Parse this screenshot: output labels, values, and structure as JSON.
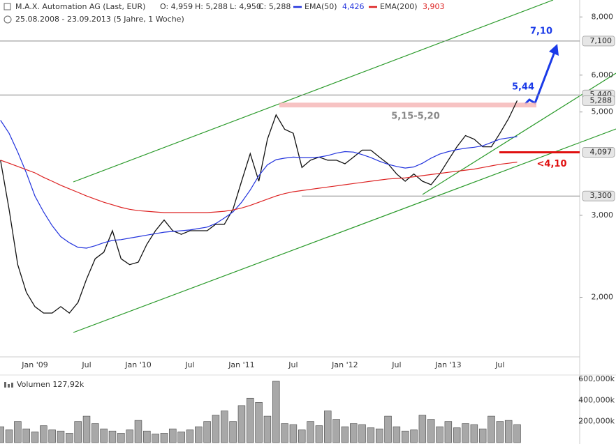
{
  "chart_data": {
    "type": "line",
    "subtitle": "25.08.2008 - 23.09.2013 (5 Jahre, 1 Woche)",
    "ohlc": [
      "O: 4,959",
      "H: 5,288",
      "L: 4,950",
      "C: 5,288"
    ],
    "log_scale": true,
    "grid": false,
    "categories": [
      null,
      null,
      null,
      null,
      "Jan '09",
      null,
      null,
      null,
      null,
      null,
      "Jul",
      null,
      null,
      null,
      null,
      null,
      "Jan '10",
      null,
      null,
      null,
      null,
      null,
      "Jul",
      null,
      null,
      null,
      null,
      null,
      "Jan '11",
      null,
      null,
      null,
      null,
      null,
      "Jul",
      null,
      null,
      null,
      null,
      null,
      "Jan '12",
      null,
      null,
      null,
      null,
      null,
      "Jul",
      null,
      null,
      null,
      null,
      null,
      "Jan '13",
      null,
      null,
      null,
      null,
      null,
      "Jul",
      null,
      null
    ],
    "series": [
      {
        "name": "M.A.X. Automation AG (Last, EUR)",
        "color": "#111111",
        "values": [
          3940,
          3090,
          2350,
          2050,
          1910,
          1850,
          1850,
          1910,
          1850,
          1950,
          2190,
          2420,
          2500,
          2780,
          2420,
          2350,
          2380,
          2600,
          2780,
          2930,
          2780,
          2730,
          2780,
          2780,
          2780,
          2870,
          2870,
          3090,
          3550,
          4070,
          3550,
          4370,
          4930,
          4590,
          4500,
          3800,
          3940,
          4000,
          3940,
          3940,
          3870,
          4000,
          4140,
          4140,
          4000,
          3870,
          3680,
          3550,
          3680,
          3550,
          3490,
          3680,
          3940,
          4210,
          4450,
          4370,
          4210,
          4210,
          4500,
          4840,
          5288
        ]
      },
      {
        "name": "EMA(50)",
        "value_label": "4,426",
        "color": "#2233dd",
        "values": [
          4800,
          4500,
          4100,
          3700,
          3300,
          3050,
          2850,
          2700,
          2620,
          2560,
          2550,
          2580,
          2620,
          2650,
          2660,
          2680,
          2700,
          2720,
          2740,
          2760,
          2770,
          2780,
          2790,
          2810,
          2830,
          2880,
          2960,
          3050,
          3200,
          3400,
          3650,
          3850,
          3950,
          3980,
          4000,
          3990,
          3990,
          4000,
          4030,
          4080,
          4110,
          4100,
          4050,
          3990,
          3920,
          3860,
          3820,
          3790,
          3810,
          3880,
          3980,
          4060,
          4110,
          4150,
          4180,
          4200,
          4230,
          4300,
          4370,
          4400,
          4426
        ]
      },
      {
        "name": "EMA(200)",
        "value_label": "3,903",
        "color": "#dd2222",
        "values": [
          3940,
          3880,
          3820,
          3760,
          3700,
          3620,
          3550,
          3480,
          3420,
          3360,
          3300,
          3250,
          3200,
          3160,
          3120,
          3090,
          3070,
          3060,
          3050,
          3040,
          3040,
          3040,
          3040,
          3040,
          3040,
          3050,
          3060,
          3080,
          3110,
          3150,
          3200,
          3250,
          3300,
          3340,
          3370,
          3390,
          3410,
          3430,
          3450,
          3470,
          3490,
          3510,
          3530,
          3550,
          3570,
          3590,
          3600,
          3610,
          3630,
          3650,
          3670,
          3690,
          3710,
          3730,
          3750,
          3770,
          3800,
          3830,
          3860,
          3880,
          3903
        ]
      }
    ],
    "ylim": [
      1500,
      8550
    ],
    "yticks": [
      {
        "value": 2000,
        "label": "2,000"
      },
      {
        "value": 3000,
        "label": "3,000"
      },
      {
        "value": 5000,
        "label": "5,000"
      },
      {
        "value": 6000,
        "label": "6,000"
      },
      {
        "value": 8000,
        "label": "8,000"
      }
    ],
    "price_labels": [
      {
        "value": 7100,
        "label": "7,100"
      },
      {
        "value": 5440,
        "label": "5,440"
      },
      {
        "value": 5288,
        "label": "5,288"
      },
      {
        "value": 4097,
        "label": "4,097"
      },
      {
        "value": 3300,
        "label": "3,300"
      }
    ],
    "annotations": {
      "target": "7,10",
      "resistance": "5,44",
      "support": "<4,10",
      "zone": {
        "label": "5,15-5,20",
        "range": [
          5150,
          5200
        ]
      }
    },
    "volume": {
      "label": "Volumen 127,92k",
      "color": "#a8a8a8",
      "values": [
        150000,
        120000,
        200000,
        130000,
        100000,
        160000,
        120000,
        110000,
        90000,
        200000,
        250000,
        180000,
        130000,
        110000,
        90000,
        120000,
        210000,
        110000,
        80000,
        90000,
        130000,
        100000,
        120000,
        150000,
        200000,
        260000,
        300000,
        200000,
        350000,
        420000,
        380000,
        250000,
        580000,
        180000,
        170000,
        120000,
        200000,
        160000,
        300000,
        220000,
        150000,
        180000,
        170000,
        140000,
        130000,
        250000,
        150000,
        110000,
        120000,
        260000,
        220000,
        150000,
        200000,
        140000,
        180000,
        170000,
        130000,
        250000,
        200000,
        210000,
        170000
      ],
      "ylim": [
        0,
        626000
      ],
      "yticks": [
        {
          "value": 200000,
          "label": "200,000k"
        },
        {
          "value": 400000,
          "label": "400,000k"
        },
        {
          "value": 600000,
          "label": "600,000k"
        }
      ]
    }
  }
}
